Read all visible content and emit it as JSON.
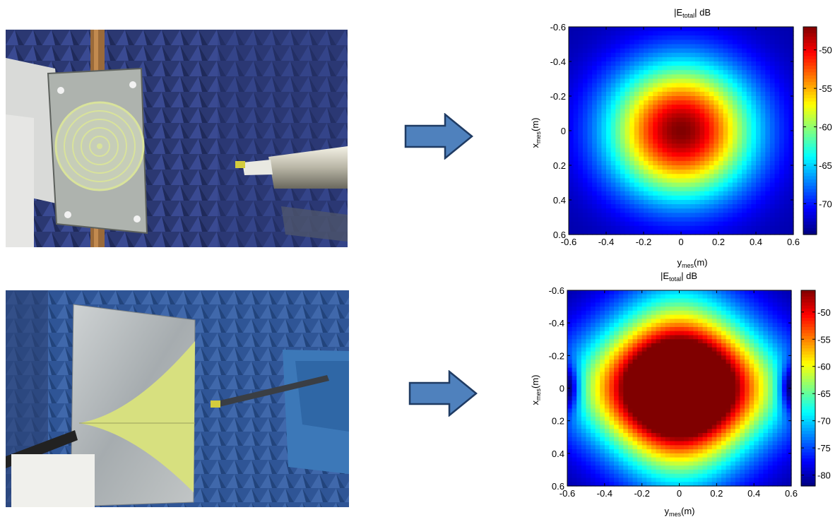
{
  "photos": [
    {
      "icon": "spiral-antenna-measurement-photo",
      "colors": {
        "wall": "#2c3a78",
        "board": "#c9cfc9",
        "spiral": "#d8e29a"
      }
    },
    {
      "icon": "vivaldi-antenna-measurement-photo",
      "colors": {
        "wall": "#2f5596",
        "board": "#b9bfc2",
        "yellow": "#d6e07f"
      }
    }
  ],
  "arrows": [
    {
      "icon": "right-arrow-icon",
      "fill": "#4f81bd",
      "stroke": "#1f3b63"
    },
    {
      "icon": "right-arrow-icon",
      "fill": "#4f81bd",
      "stroke": "#1f3b63"
    }
  ],
  "chart_data": [
    {
      "type": "heatmap",
      "title_main": "|E",
      "title_sub": "total",
      "title_tail": "| dB",
      "xlabel_main": "y",
      "xlabel_sub": "mes",
      "xlabel_tail": "(m)",
      "ylabel_main": "x",
      "ylabel_sub": "mes",
      "ylabel_tail": "(m)",
      "xlim": [
        -0.6,
        0.6
      ],
      "ylim": [
        -0.6,
        0.6
      ],
      "xticks": [
        -0.6,
        -0.4,
        -0.2,
        0,
        0.2,
        0.4,
        0.6
      ],
      "xtick_labels": [
        "-0.6",
        "-0.4",
        "-0.2",
        "0",
        "0.2",
        "0.4",
        "0.6"
      ],
      "yticks": [
        -0.6,
        -0.4,
        -0.2,
        0,
        0.2,
        0.4,
        0.6
      ],
      "ytick_labels": [
        "-0.6",
        "-0.4",
        "-0.2",
        "0",
        "0.2",
        "0.4",
        "0.6"
      ],
      "y_axis_direction": "top-to-bottom increasing",
      "colormap": "jet",
      "clim": [
        -74,
        -47
      ],
      "colorbar_ticks": [
        -50,
        -55,
        -60,
        -65,
        -70
      ],
      "colorbar_tick_labels": [
        "-50",
        "-55",
        "-60",
        "-65",
        "-70"
      ],
      "field": {
        "peak_db": -47,
        "edge_db": -73,
        "pattern": "circular",
        "pattern_width_m": 0.38,
        "grid": 48
      }
    },
    {
      "type": "heatmap",
      "title_main": "|E",
      "title_sub": "total",
      "title_tail": "| dB",
      "xlabel_main": "y",
      "xlabel_sub": "mes",
      "xlabel_tail": "(m)",
      "ylabel_main": "x",
      "ylabel_sub": "mes",
      "ylabel_tail": "(m)",
      "xlim": [
        -0.6,
        0.6
      ],
      "ylim": [
        -0.6,
        0.6
      ],
      "xticks": [
        -0.6,
        -0.4,
        -0.2,
        0,
        0.2,
        0.4,
        0.6
      ],
      "xtick_labels": [
        "-0.6",
        "-0.4",
        "-0.2",
        "0",
        "0.2",
        "0.4",
        "0.6"
      ],
      "yticks": [
        -0.6,
        -0.4,
        -0.2,
        0,
        0.2,
        0.4,
        0.6
      ],
      "ytick_labels": [
        "-0.6",
        "-0.4",
        "-0.2",
        "0",
        "0.2",
        "0.4",
        "0.6"
      ],
      "y_axis_direction": "top-to-bottom increasing",
      "colormap": "jet",
      "clim": [
        -82,
        -46
      ],
      "colorbar_ticks": [
        -50,
        -55,
        -60,
        -65,
        -70,
        -75,
        -80
      ],
      "colorbar_tick_labels": [
        "-50",
        "-55",
        "-60",
        "-65",
        "-70",
        "-75",
        "-80"
      ],
      "field": {
        "peak_db": -46,
        "edge_db": -82,
        "pattern": "four-lobed cross",
        "pattern_width_m": 0.55,
        "grid": 48
      }
    }
  ]
}
